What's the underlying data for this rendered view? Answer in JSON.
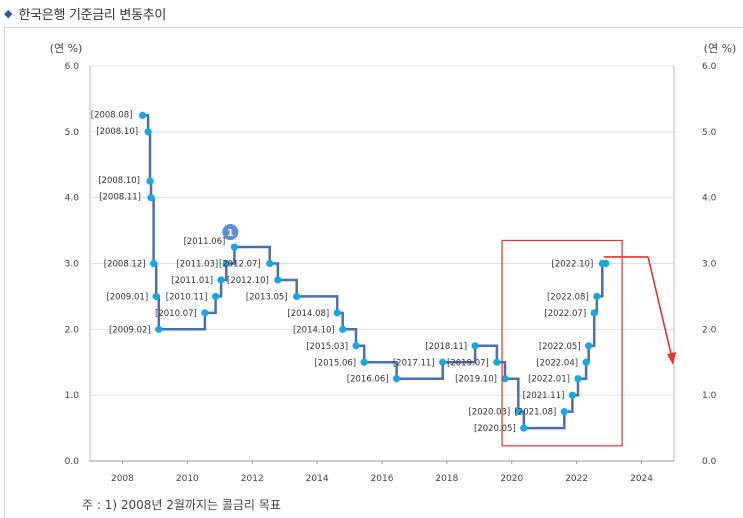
{
  "header": {
    "title": "한국은행 기준금리 변동추이"
  },
  "footnote": "주 : 1) 2008년 2월까지는 콜금리 목표",
  "chart_data": {
    "type": "line",
    "step": true,
    "title": "한국은행 기준금리 변동추이",
    "y_unit_left": "(연 %)",
    "y_unit_right": "(연 %)",
    "xlim": [
      2007,
      2025
    ],
    "ylim": [
      0.0,
      6.0
    ],
    "x_ticks": [
      "2008",
      "2010",
      "2012",
      "2014",
      "2016",
      "2018",
      "2020",
      "2022",
      "2024"
    ],
    "y_ticks": [
      "0.0",
      "1.0",
      "2.0",
      "3.0",
      "4.0",
      "5.0",
      "6.0"
    ],
    "grid": "horizontal",
    "colors": {
      "line": "#4a6fb5",
      "point": "#12a9e8",
      "highlight_box": "#e8322b",
      "trend_arrow": "#e8322b",
      "grid": "#e0e0e0",
      "footnote_marker": "#5b8ed6"
    },
    "footnote_marker": {
      "label": "1",
      "attached_to": "2011.06"
    },
    "series": [
      {
        "points": [
          {
            "label": "[2008.08]",
            "x": 2008.62,
            "y": 5.25
          },
          {
            "label": "[2008.10]",
            "x": 2008.79,
            "y": 5.0
          },
          {
            "label": "[2008.10]",
            "x": 2008.85,
            "y": 4.25
          },
          {
            "label": "[2008.11]",
            "x": 2008.88,
            "y": 4.0
          },
          {
            "label": "[2008.12]",
            "x": 2008.96,
            "y": 3.0
          },
          {
            "label": "[2009.01]",
            "x": 2009.04,
            "y": 2.5
          },
          {
            "label": "[2009.02]",
            "x": 2009.12,
            "y": 2.0
          },
          {
            "label": "[2010.07]",
            "x": 2010.54,
            "y": 2.25
          },
          {
            "label": "[2010.11]",
            "x": 2010.87,
            "y": 2.5
          },
          {
            "label": "[2011.01]",
            "x": 2011.04,
            "y": 2.75
          },
          {
            "label": "[2011.03]",
            "x": 2011.2,
            "y": 3.0
          },
          {
            "label": "[2011.06]",
            "x": 2011.45,
            "y": 3.25
          },
          {
            "label": "[2012.07]",
            "x": 2012.54,
            "y": 3.0
          },
          {
            "label": "[2012.10]",
            "x": 2012.79,
            "y": 2.75
          },
          {
            "label": "[2013.05]",
            "x": 2013.37,
            "y": 2.5
          },
          {
            "label": "[2014.08]",
            "x": 2014.62,
            "y": 2.25
          },
          {
            "label": "[2014.10]",
            "x": 2014.79,
            "y": 2.0
          },
          {
            "label": "[2015.03]",
            "x": 2015.2,
            "y": 1.75
          },
          {
            "label": "[2015.06]",
            "x": 2015.45,
            "y": 1.5
          },
          {
            "label": "[2016.06]",
            "x": 2016.45,
            "y": 1.25
          },
          {
            "label": "[2017.11]",
            "x": 2017.87,
            "y": 1.5
          },
          {
            "label": "[2018.11]",
            "x": 2018.87,
            "y": 1.75
          },
          {
            "label": "[2019.07]",
            "x": 2019.54,
            "y": 1.5
          },
          {
            "label": "[2019.10]",
            "x": 2019.79,
            "y": 1.25
          },
          {
            "label": "[2020.03]",
            "x": 2020.2,
            "y": 0.75
          },
          {
            "label": "[2020.05]",
            "x": 2020.37,
            "y": 0.5
          },
          {
            "label": "[2021.08]",
            "x": 2021.62,
            "y": 0.75
          },
          {
            "label": "[2021.11]",
            "x": 2021.87,
            "y": 1.0
          },
          {
            "label": "[2022.01]",
            "x": 2022.04,
            "y": 1.25
          },
          {
            "label": "[2022.04]",
            "x": 2022.29,
            "y": 1.5
          },
          {
            "label": "[2022.05]",
            "x": 2022.37,
            "y": 1.75
          },
          {
            "label": "[2022.07]",
            "x": 2022.54,
            "y": 2.25
          },
          {
            "label": "[2022.08]",
            "x": 2022.62,
            "y": 2.5
          },
          {
            "label": "[2022.10]",
            "x": 2022.79,
            "y": 3.0
          }
        ],
        "end_x": 2022.9
      }
    ]
  }
}
